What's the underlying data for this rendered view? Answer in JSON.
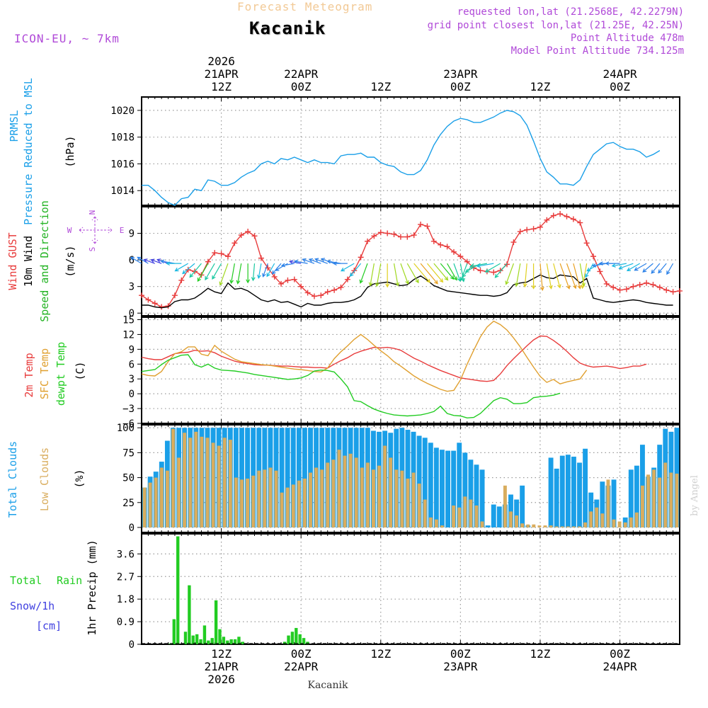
{
  "header": {
    "title_faint": "Forecast Meteogram",
    "location": "Kacanik",
    "model": "ICON-EU, ~ 7km",
    "requested": "requested lon,lat (21.2568E, 42.2279N)",
    "grid_point": "grid point closest lon,lat (21.25E, 42.25N)",
    "point_alt": "Point Altitude 478m",
    "model_alt": "Model Point Altitude 734.125m",
    "watermark": "by Angel",
    "footer": "Kacanik"
  },
  "colors": {
    "pressure": "#1a9fe8",
    "gust": "#e83c3c",
    "wind": "#000000",
    "dir_label": "#22b322",
    "temp2m": "#e83c3c",
    "sfc": "#e0a030",
    "dewpt": "#22cc22",
    "total_clouds": "#1a9fe8",
    "low_clouds": "#d9ad5e",
    "rain": "#22cc22",
    "snow": "#4040e0",
    "purple": "#b04ad8",
    "faint": "#f2c995",
    "grid": "#999999"
  },
  "time_axis": {
    "top_year": "2026",
    "top_ticks": [
      {
        "i": 12,
        "date": "21APR",
        "hour": "12Z"
      },
      {
        "i": 24,
        "date": "22APR",
        "hour": "00Z"
      },
      {
        "i": 36,
        "date": "",
        "hour": "12Z"
      },
      {
        "i": 48,
        "date": "23APR",
        "hour": "00Z"
      },
      {
        "i": 60,
        "date": "",
        "hour": "12Z"
      },
      {
        "i": 72,
        "date": "24APR",
        "hour": "00Z"
      }
    ],
    "bottom_ticks": [
      {
        "i": 12,
        "hour": "12Z",
        "date": "21APR",
        "year": "2026"
      },
      {
        "i": 24,
        "hour": "00Z",
        "date": "22APR",
        "year": ""
      },
      {
        "i": 36,
        "hour": "12Z",
        "date": "",
        "year": ""
      },
      {
        "i": 48,
        "hour": "00Z",
        "date": "23APR",
        "year": ""
      },
      {
        "i": 60,
        "hour": "12Z",
        "date": "",
        "year": ""
      },
      {
        "i": 72,
        "hour": "00Z",
        "date": "24APR",
        "year": ""
      }
    ]
  },
  "chart_data": [
    {
      "type": "line",
      "id": "pressure",
      "ylabel": "(hPa)",
      "side_labels": [
        "PRMSL",
        "Pressure Reduced to MSL"
      ],
      "ylim": [
        1012.9,
        1021
      ],
      "yticks": [
        1014,
        1016,
        1018,
        1020
      ],
      "series": [
        {
          "name": "PRMSL",
          "values": [
            1014.4,
            1014.4,
            1014.0,
            1013.5,
            1013.1,
            1012.9,
            1013.4,
            1013.5,
            1014.1,
            1014.0,
            1014.8,
            1014.7,
            1014.4,
            1014.4,
            1014.6,
            1015.0,
            1015.3,
            1015.5,
            1016.0,
            1016.2,
            1016.0,
            1016.4,
            1016.3,
            1016.5,
            1016.3,
            1016.1,
            1016.3,
            1016.1,
            1016.1,
            1016.0,
            1016.6,
            1016.7,
            1016.7,
            1016.8,
            1016.5,
            1016.5,
            1016.1,
            1015.9,
            1015.8,
            1015.4,
            1015.2,
            1015.2,
            1015.5,
            1016.3,
            1017.4,
            1018.2,
            1018.8,
            1019.2,
            1019.4,
            1019.3,
            1019.1,
            1019.1,
            1019.3,
            1019.5,
            1019.8,
            1020.0,
            1019.9,
            1019.6,
            1018.9,
            1017.7,
            1016.4,
            1015.4,
            1015.0,
            1014.5,
            1014.5,
            1014.4,
            1014.8,
            1015.8,
            1016.7,
            1017.1,
            1017.5,
            1017.6,
            1017.3,
            1017.1,
            1017.1,
            1016.9,
            1016.5,
            1016.7,
            1017.0
          ]
        }
      ]
    },
    {
      "type": "line",
      "id": "wind",
      "ylabel": "(m/s)",
      "side_labels": [
        "Wind GUST",
        "10m Wind",
        "Speed and Direction"
      ],
      "compass": [
        "N",
        "W",
        "E",
        "S"
      ],
      "ylim": [
        -0.3,
        12
      ],
      "yticks": [
        0,
        3,
        6,
        9
      ],
      "series": [
        {
          "name": "Wind GUST",
          "values": [
            2.0,
            1.5,
            1.1,
            0.7,
            0.8,
            2.0,
            3.7,
            4.9,
            4.7,
            4.3,
            5.8,
            6.8,
            6.7,
            6.4,
            7.9,
            8.8,
            9.2,
            8.7,
            6.2,
            5.1,
            4.1,
            3.3,
            3.7,
            3.8,
            3.0,
            2.3,
            1.9,
            2.0,
            2.4,
            2.6,
            2.9,
            3.8,
            4.8,
            6.3,
            8.1,
            8.7,
            9.1,
            9.0,
            8.9,
            8.6,
            8.6,
            8.8,
            10.0,
            9.8,
            8.1,
            7.7,
            7.5,
            6.9,
            6.4,
            5.8,
            5.1,
            4.8,
            4.7,
            4.6,
            4.8,
            5.5,
            8.0,
            9.2,
            9.4,
            9.5,
            9.7,
            10.5,
            11.0,
            11.2,
            10.9,
            10.6,
            10.2,
            7.9,
            6.4,
            4.7,
            3.3,
            2.9,
            2.6,
            2.7,
            3.0,
            3.2,
            3.4,
            3.2,
            2.9,
            2.6,
            2.4,
            2.5
          ]
        },
        {
          "name": "10m Wind",
          "values": [
            0.9,
            0.9,
            0.7,
            0.6,
            0.7,
            1.3,
            1.5,
            1.5,
            1.7,
            2.2,
            2.8,
            2.4,
            2.2,
            3.4,
            2.7,
            2.8,
            2.5,
            2.0,
            1.5,
            1.3,
            1.5,
            1.2,
            1.3,
            1.0,
            0.7,
            1.1,
            0.9,
            0.9,
            1.1,
            1.2,
            1.2,
            1.3,
            1.5,
            1.9,
            2.9,
            3.3,
            3.4,
            3.5,
            3.3,
            3.1,
            3.2,
            3.8,
            4.2,
            3.7,
            3.1,
            2.8,
            2.5,
            2.4,
            2.3,
            2.2,
            2.1,
            2.0,
            2.0,
            1.9,
            2.0,
            2.3,
            3.2,
            3.4,
            3.5,
            3.9,
            4.3,
            4.0,
            3.9,
            4.3,
            4.2,
            4.1,
            3.4,
            3.9,
            1.7,
            1.5,
            1.3,
            1.2,
            1.3,
            1.4,
            1.5,
            1.4,
            1.2,
            1.1,
            1.0,
            0.9,
            0.9
          ]
        }
      ],
      "arrows_dir_deg": [
        120,
        120,
        110,
        110,
        110,
        100,
        90,
        60,
        50,
        40,
        30,
        30,
        30,
        20,
        10,
        10,
        0,
        5,
        10,
        20,
        30,
        40,
        60,
        80,
        100,
        100,
        110,
        110,
        110,
        110,
        100,
        90,
        60,
        40,
        20,
        10,
        10,
        0,
        350,
        340,
        330,
        320,
        320,
        320,
        320,
        320,
        330,
        340,
        350,
        20,
        40,
        60,
        80,
        80,
        60,
        40,
        20,
        10,
        5,
        0,
        355,
        350,
        345,
        340,
        340,
        345,
        350,
        10,
        30,
        60,
        80,
        90,
        90,
        80,
        70,
        60,
        60,
        50,
        40,
        40,
        30
      ],
      "arrows_speed": [
        0.9,
        0.9,
        0.7,
        0.6,
        0.7,
        1.3,
        1.5,
        1.5,
        1.7,
        2.2,
        2.8,
        2.4,
        2.2,
        3.4,
        2.7,
        2.8,
        2.5,
        2.0,
        1.5,
        1.3,
        1.5,
        1.2,
        1.3,
        1.0,
        0.7,
        1.1,
        0.9,
        0.9,
        1.1,
        1.2,
        1.2,
        1.3,
        1.5,
        1.9,
        2.9,
        3.3,
        3.4,
        3.5,
        3.3,
        3.1,
        3.2,
        3.8,
        4.2,
        3.7,
        3.1,
        2.8,
        2.5,
        2.4,
        2.3,
        2.2,
        2.1,
        2.0,
        2.0,
        1.9,
        2.0,
        2.3,
        3.2,
        3.4,
        3.5,
        3.9,
        4.3,
        4.0,
        3.9,
        4.3,
        4.2,
        4.1,
        3.4,
        3.9,
        1.7,
        1.5,
        1.3,
        1.2,
        1.3,
        1.4,
        1.5,
        1.4,
        1.2,
        1.1,
        1.0,
        0.9,
        0.9
      ]
    },
    {
      "type": "line",
      "id": "temp",
      "ylabel": "(C)",
      "side_labels": [
        "2m Temp",
        "SFC Temp",
        "dewpt Temp"
      ],
      "ylim": [
        -6,
        15.5
      ],
      "yticks": [
        -6,
        -3,
        0,
        3,
        6,
        9,
        12,
        15
      ],
      "series": [
        {
          "name": "2m Temp",
          "values": [
            7.4,
            7.1,
            6.9,
            6.9,
            7.5,
            8.1,
            8.3,
            8.4,
            8.8,
            8.6,
            8.7,
            8.3,
            7.6,
            7.1,
            6.6,
            6.3,
            6.1,
            5.9,
            5.8,
            5.8,
            5.7,
            5.6,
            5.6,
            5.5,
            5.4,
            5.4,
            5.3,
            5.3,
            5.2,
            6.0,
            6.7,
            7.3,
            8.1,
            8.6,
            9.0,
            9.4,
            9.3,
            9.4,
            9.2,
            8.8,
            8.0,
            7.2,
            6.6,
            5.9,
            5.3,
            4.7,
            4.2,
            3.7,
            3.2,
            3.0,
            2.8,
            2.6,
            2.5,
            2.7,
            4.0,
            5.7,
            7.1,
            8.4,
            9.7,
            10.9,
            11.7,
            11.6,
            10.8,
            9.8,
            8.6,
            7.3,
            6.2,
            5.7,
            5.4,
            5.5,
            5.6,
            5.4,
            5.1,
            5.3,
            5.6,
            5.6,
            6.0
          ]
        },
        {
          "name": "SFC Temp",
          "values": [
            4.0,
            3.7,
            3.6,
            4.5,
            6.5,
            8.1,
            8.5,
            9.5,
            9.5,
            8.0,
            7.7,
            9.8,
            8.6,
            7.8,
            7.0,
            6.5,
            6.3,
            6.1,
            5.9,
            5.8,
            5.6,
            5.4,
            5.2,
            5.0,
            4.9,
            4.7,
            4.5,
            4.4,
            5.2,
            7.1,
            8.5,
            9.7,
            11.0,
            12.0,
            11.0,
            9.8,
            8.7,
            7.7,
            6.5,
            5.6,
            4.6,
            3.6,
            2.8,
            2.1,
            1.5,
            0.9,
            0.5,
            0.7,
            2.8,
            6.0,
            8.8,
            11.5,
            13.5,
            14.7,
            14.0,
            12.9,
            11.3,
            9.5,
            7.4,
            5.4,
            3.5,
            2.3,
            2.9,
            2.0,
            2.4,
            2.7,
            3.0,
            4.8
          ]
        },
        {
          "name": "dewpt Temp",
          "values": [
            4.5,
            4.7,
            4.9,
            5.9,
            6.8,
            7.3,
            7.8,
            7.9,
            5.9,
            5.4,
            6.0,
            5.2,
            4.8,
            4.7,
            4.6,
            4.4,
            4.2,
            3.9,
            3.7,
            3.5,
            3.3,
            3.1,
            2.9,
            3.0,
            3.2,
            3.7,
            4.6,
            4.8,
            4.7,
            4.4,
            3.0,
            1.4,
            -1.4,
            -1.6,
            -2.4,
            -3.1,
            -3.6,
            -4.0,
            -4.3,
            -4.4,
            -4.5,
            -4.4,
            -4.3,
            -4.0,
            -3.6,
            -2.5,
            -4.0,
            -4.4,
            -4.5,
            -4.9,
            -4.8,
            -4.0,
            -2.7,
            -1.4,
            -0.8,
            -1.1,
            -2.0,
            -2.0,
            -1.8,
            -0.8,
            -0.6,
            -0.5,
            -0.3,
            0.1
          ]
        }
      ]
    },
    {
      "type": "bar",
      "id": "clouds",
      "ylabel": "(%)",
      "side_labels": [
        "Total Clouds",
        "Low Clouds"
      ],
      "ylim": [
        -5,
        103
      ],
      "yticks": [
        0,
        25,
        50,
        75,
        100
      ],
      "series": [
        {
          "name": "Total Clouds",
          "values": [
            40,
            51,
            56,
            66,
            87,
            100,
            100,
            100,
            100,
            100,
            100,
            100,
            100,
            100,
            100,
            100,
            100,
            100,
            100,
            100,
            100,
            100,
            100,
            100,
            100,
            100,
            100,
            100,
            100,
            100,
            100,
            100,
            100,
            100,
            100,
            100,
            100,
            100,
            100,
            100,
            97,
            96,
            97,
            95,
            99,
            100,
            98,
            96,
            92,
            90,
            85,
            80,
            78,
            77,
            77,
            85,
            75,
            68,
            63,
            58,
            2,
            23,
            21,
            23,
            33,
            28,
            42,
            2,
            0,
            0,
            0,
            70,
            59,
            72,
            73,
            71,
            65,
            79,
            35,
            28,
            46,
            42,
            48,
            0,
            10,
            58,
            62,
            83,
            51,
            60,
            83,
            99,
            96,
            100
          ]
        },
        {
          "name": "Low Clouds",
          "values": [
            40,
            45,
            50,
            60,
            57,
            99,
            70,
            95,
            90,
            96,
            91,
            90,
            85,
            82,
            90,
            88,
            50,
            48,
            49,
            52,
            57,
            58,
            60,
            57,
            35,
            40,
            43,
            47,
            49,
            55,
            60,
            58,
            65,
            68,
            78,
            72,
            74,
            70,
            60,
            65,
            58,
            62,
            82,
            70,
            58,
            57,
            49,
            55,
            44,
            28,
            10,
            8,
            2,
            0,
            22,
            20,
            31,
            28,
            22,
            6,
            0,
            0,
            0,
            42,
            16,
            12,
            4,
            3,
            3,
            2,
            2,
            2,
            1,
            1,
            1,
            1,
            1,
            5,
            16,
            20,
            14,
            48,
            8,
            6,
            5,
            10,
            15,
            42,
            53,
            58,
            50,
            65,
            55,
            54
          ]
        }
      ]
    },
    {
      "type": "bar",
      "id": "precip",
      "ylabel": "1hr Precip (mm)",
      "side_labels": [
        "Total Rain",
        "Snow/1h",
        "[cm]"
      ],
      "ylim": [
        0,
        4.4
      ],
      "yticks": [
        0,
        0.9,
        1.8,
        2.7,
        3.6
      ],
      "series": [
        {
          "name": "Total Rain",
          "values": [
            0,
            0,
            0,
            0,
            0,
            0,
            0,
            0.02,
            1.0,
            4.3,
            0,
            0.5,
            2.35,
            0.35,
            0.4,
            0.2,
            0.75,
            0.15,
            0.25,
            1.75,
            0.6,
            0.3,
            0.15,
            0.2,
            0.2,
            0.3,
            0.1,
            0,
            0,
            0,
            0,
            0,
            0,
            0,
            0,
            0,
            0,
            0.1,
            0.35,
            0.5,
            0.65,
            0.4,
            0.25,
            0.1,
            0,
            0,
            0,
            0,
            0,
            0,
            0,
            0,
            0,
            0,
            0,
            0,
            0,
            0,
            0,
            0,
            0,
            0,
            0,
            0,
            0,
            0,
            0,
            0,
            0,
            0,
            0,
            0,
            0,
            0,
            0,
            0,
            0,
            0,
            0,
            0,
            0,
            0,
            0,
            0,
            0,
            0,
            0,
            0,
            0,
            0,
            0,
            0,
            0,
            0,
            0,
            0,
            0,
            0,
            0,
            0,
            0,
            0,
            0,
            0,
            0,
            0,
            0,
            0,
            0,
            0,
            0,
            0,
            0,
            0,
            0,
            0,
            0,
            0,
            0,
            0,
            0,
            0,
            0,
            0,
            0,
            0,
            0,
            0,
            0,
            0,
            0,
            0,
            0,
            0,
            0,
            0,
            0,
            0,
            0,
            0,
            0
          ]
        }
      ]
    }
  ]
}
